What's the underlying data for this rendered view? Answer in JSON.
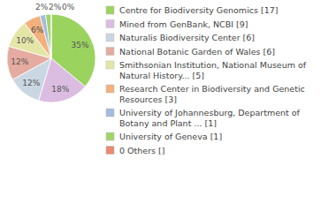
{
  "chart_data": {
    "type": "pie",
    "categories": [
      "Centre for Biodiversity Genomics [17]",
      "Mined from GenBank, NCBI [9]",
      "Naturalis Biodiversity Center [6]",
      "National Botanic Garden of Wales [6]",
      "Smithsonian Institution, National Museum of Natural History... [5]",
      "Research Center in Biodiversity and Genetic Resources [3]",
      "University of Johannesburg, Department of Botany and Plant ... [1]",
      "University of Geneva [1]",
      "0 Others []"
    ],
    "values": [
      35,
      18,
      12,
      12,
      10,
      6,
      2,
      2,
      0
    ],
    "value_labels": [
      "35%",
      "18%",
      "12%",
      "12%",
      "10%",
      "6%",
      "2%",
      "2%",
      "0%"
    ],
    "colors": [
      "#9bd35f",
      "#dcbde2",
      "#cad7e3",
      "#e5aba0",
      "#e4e6a8",
      "#f2b07c",
      "#a3bbdc",
      "#9fd46b",
      "#ea8a6e"
    ],
    "data_labels": true,
    "legend": "right"
  }
}
